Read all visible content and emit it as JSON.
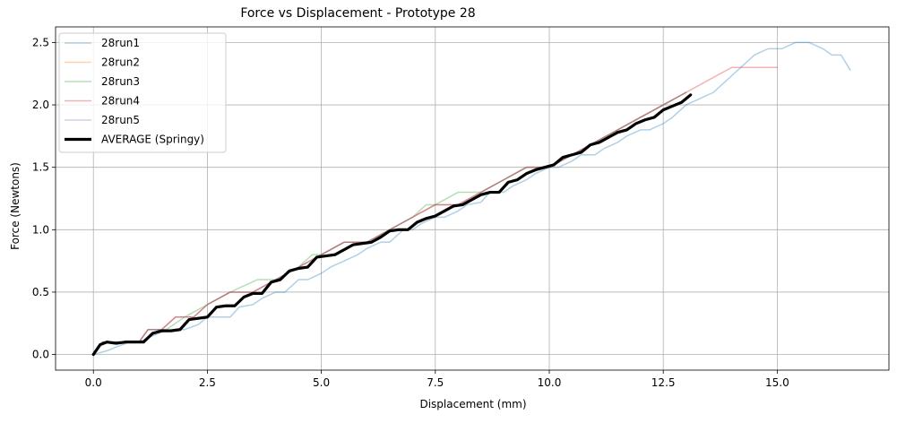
{
  "chart_data": {
    "type": "line",
    "title": "Force vs Displacement - Prototype 28",
    "xlabel": "Displacement (mm)",
    "ylabel": "Force (Newtons)",
    "xlim": [
      -0.83,
      17.45
    ],
    "ylim": [
      -0.125,
      2.625
    ],
    "xticks": [
      0,
      2.5,
      5,
      7.5,
      10,
      12.5,
      15
    ],
    "xtick_labels": [
      "0.0",
      "2.5",
      "5.0",
      "7.5",
      "10.0",
      "12.5",
      "15.0"
    ],
    "yticks": [
      0,
      0.5,
      1,
      1.5,
      2,
      2.5
    ],
    "ytick_labels": [
      "0.0",
      "0.5",
      "1.0",
      "1.5",
      "2.0",
      "2.5"
    ],
    "grid": true,
    "legend_position": "top-left",
    "series": [
      {
        "name": "28run1",
        "color": "#1f77b4",
        "x": [
          0,
          0.3,
          0.5,
          0.8,
          1.0,
          1.3,
          1.5,
          1.8,
          2.0,
          2.3,
          2.5,
          2.8,
          3.0,
          3.2,
          3.5,
          3.7,
          4.0,
          4.2,
          4.5,
          4.7,
          5.0,
          5.2,
          5.5,
          5.8,
          6.0,
          6.3,
          6.5,
          6.8,
          7.0,
          7.2,
          7.5,
          7.7,
          8.0,
          8.2,
          8.5,
          8.7,
          9.0,
          9.2,
          9.5,
          9.7,
          10.0,
          10.2,
          10.5,
          10.7,
          11.0,
          11.2,
          11.5,
          11.7,
          12.0,
          12.2,
          12.5,
          12.7,
          13.0,
          13.3,
          13.6,
          13.9,
          14.2,
          14.5,
          14.8,
          15.1,
          15.4,
          15.7,
          16.0,
          16.2,
          16.4,
          16.6
        ],
        "y": [
          0,
          0.03,
          0.06,
          0.1,
          0.1,
          0.15,
          0.18,
          0.2,
          0.2,
          0.24,
          0.3,
          0.3,
          0.3,
          0.38,
          0.4,
          0.45,
          0.5,
          0.5,
          0.6,
          0.6,
          0.65,
          0.7,
          0.75,
          0.8,
          0.85,
          0.9,
          0.9,
          1.0,
          1.0,
          1.05,
          1.1,
          1.1,
          1.15,
          1.2,
          1.22,
          1.3,
          1.3,
          1.35,
          1.4,
          1.45,
          1.5,
          1.5,
          1.55,
          1.6,
          1.6,
          1.65,
          1.7,
          1.75,
          1.8,
          1.8,
          1.85,
          1.9,
          2.0,
          2.05,
          2.1,
          2.2,
          2.3,
          2.4,
          2.45,
          2.45,
          2.5,
          2.5,
          2.45,
          2.4,
          2.4,
          2.28
        ]
      },
      {
        "name": "28run2",
        "color": "#ff7f0e",
        "x": [
          0,
          0.2,
          0.5,
          1.0,
          1.2,
          1.5,
          1.8,
          2.2,
          2.5,
          3.0,
          3.5,
          4.0,
          4.5,
          5.0,
          5.5,
          6.0,
          6.5,
          7.0,
          7.5,
          8.0,
          8.5,
          9.0,
          9.5,
          10.0,
          10.5,
          11.0,
          11.5,
          12.0,
          12.5,
          13.0
        ],
        "y": [
          0,
          0.1,
          0.1,
          0.1,
          0.2,
          0.2,
          0.3,
          0.3,
          0.4,
          0.5,
          0.5,
          0.6,
          0.7,
          0.8,
          0.9,
          0.9,
          1.0,
          1.1,
          1.2,
          1.2,
          1.3,
          1.4,
          1.5,
          1.5,
          1.6,
          1.7,
          1.8,
          1.9,
          2.0,
          2.1
        ]
      },
      {
        "name": "28run3",
        "color": "#2ca02c",
        "x": [
          0,
          0.2,
          0.5,
          1.0,
          1.2,
          1.6,
          2.0,
          2.5,
          3.0,
          3.6,
          4.0,
          4.5,
          4.8,
          5.0,
          5.5,
          6.0,
          6.5,
          7.0,
          7.3,
          7.5,
          8.0,
          8.5,
          9.0,
          9.5,
          10.0,
          10.5,
          11.0,
          11.5,
          12.0,
          12.5,
          13.0
        ],
        "y": [
          0,
          0.1,
          0.1,
          0.1,
          0.2,
          0.2,
          0.3,
          0.4,
          0.5,
          0.6,
          0.6,
          0.7,
          0.8,
          0.8,
          0.9,
          0.9,
          1.0,
          1.1,
          1.2,
          1.2,
          1.3,
          1.3,
          1.4,
          1.5,
          1.5,
          1.6,
          1.7,
          1.8,
          1.9,
          2.0,
          2.1
        ]
      },
      {
        "name": "28run4",
        "color": "#d62728",
        "x": [
          0,
          0.2,
          0.5,
          1.0,
          1.2,
          1.5,
          1.8,
          2.2,
          2.5,
          3.0,
          3.5,
          4.0,
          4.5,
          5.0,
          5.5,
          6.0,
          6.5,
          7.0,
          7.5,
          8.0,
          8.5,
          9.0,
          9.5,
          10.0,
          10.5,
          11.0,
          11.5,
          12.0,
          12.5,
          13.0,
          13.5,
          14.0,
          14.5,
          15.0
        ],
        "y": [
          0,
          0.1,
          0.1,
          0.1,
          0.2,
          0.2,
          0.3,
          0.3,
          0.4,
          0.5,
          0.5,
          0.6,
          0.7,
          0.8,
          0.9,
          0.9,
          1.0,
          1.1,
          1.2,
          1.2,
          1.3,
          1.4,
          1.5,
          1.5,
          1.6,
          1.7,
          1.8,
          1.9,
          2.0,
          2.1,
          2.2,
          2.3,
          2.3,
          2.3
        ]
      },
      {
        "name": "28run5",
        "color": "#9467bd",
        "x": [
          0,
          0.2,
          0.5,
          1.0,
          1.2,
          1.5,
          1.8,
          2.2,
          2.5,
          3.0,
          3.5,
          4.0,
          4.5,
          5.0,
          5.5,
          6.0,
          6.5,
          7.0,
          7.5,
          8.0,
          8.5,
          9.0,
          9.5,
          10.0,
          10.5,
          11.0,
          11.5,
          12.0,
          12.5,
          13.0
        ],
        "y": [
          0,
          0.1,
          0.1,
          0.1,
          0.2,
          0.2,
          0.3,
          0.3,
          0.4,
          0.5,
          0.5,
          0.6,
          0.7,
          0.8,
          0.9,
          0.9,
          1.0,
          1.1,
          1.2,
          1.2,
          1.3,
          1.4,
          1.5,
          1.5,
          1.6,
          1.7,
          1.8,
          1.9,
          2.0,
          2.1
        ]
      },
      {
        "name": "AVERAGE (Springy)",
        "color": "#000000",
        "x": [
          0,
          0.15,
          0.3,
          0.5,
          0.7,
          0.9,
          1.1,
          1.3,
          1.5,
          1.7,
          1.9,
          2.1,
          2.3,
          2.5,
          2.7,
          2.9,
          3.1,
          3.3,
          3.5,
          3.7,
          3.9,
          4.1,
          4.3,
          4.5,
          4.7,
          4.9,
          5.1,
          5.3,
          5.5,
          5.7,
          5.9,
          6.1,
          6.3,
          6.5,
          6.7,
          6.9,
          7.1,
          7.3,
          7.5,
          7.7,
          7.9,
          8.1,
          8.3,
          8.5,
          8.7,
          8.9,
          9.1,
          9.3,
          9.5,
          9.7,
          9.9,
          10.1,
          10.3,
          10.5,
          10.7,
          10.9,
          11.1,
          11.3,
          11.5,
          11.7,
          11.9,
          12.1,
          12.3,
          12.5,
          12.7,
          12.9,
          13.1
        ],
        "y": [
          0,
          0.08,
          0.1,
          0.09,
          0.1,
          0.1,
          0.1,
          0.17,
          0.19,
          0.19,
          0.2,
          0.28,
          0.29,
          0.3,
          0.38,
          0.39,
          0.39,
          0.46,
          0.49,
          0.49,
          0.58,
          0.6,
          0.67,
          0.69,
          0.7,
          0.78,
          0.79,
          0.8,
          0.84,
          0.88,
          0.89,
          0.9,
          0.94,
          0.99,
          1.0,
          1.0,
          1.06,
          1.09,
          1.11,
          1.15,
          1.19,
          1.2,
          1.24,
          1.28,
          1.3,
          1.3,
          1.38,
          1.4,
          1.45,
          1.48,
          1.5,
          1.52,
          1.58,
          1.6,
          1.62,
          1.68,
          1.7,
          1.74,
          1.78,
          1.8,
          1.85,
          1.88,
          1.9,
          1.96,
          1.99,
          2.02,
          2.08
        ]
      }
    ]
  }
}
